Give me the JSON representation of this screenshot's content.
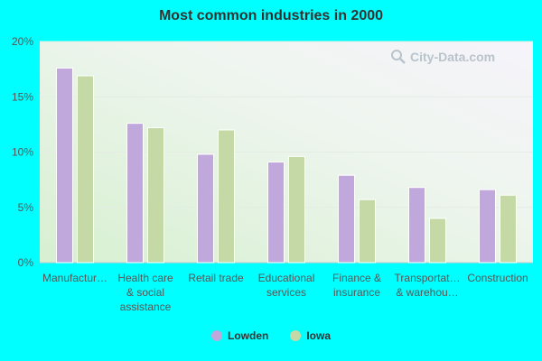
{
  "chart_data": {
    "type": "bar",
    "title": "Most common industries in 2000",
    "categories": [
      "Manufactur…",
      "Health care & social assistance",
      "Retail trade",
      "Educational services",
      "Finance & insurance",
      "Transportat… & warehou…",
      "Construction"
    ],
    "category_lines": [
      [
        "Manufactur…"
      ],
      [
        "Health care",
        "& social",
        "assistance"
      ],
      [
        "Retail trade"
      ],
      [
        "Educational",
        "services"
      ],
      [
        "Finance &",
        "insurance"
      ],
      [
        "Transportat…",
        "& warehou…"
      ],
      [
        "Construction"
      ]
    ],
    "series": [
      {
        "name": "Lowden",
        "values": [
          17.6,
          12.6,
          9.8,
          9.1,
          7.9,
          6.8,
          6.6
        ],
        "color": "#c0a8dc"
      },
      {
        "name": "Iowa",
        "values": [
          16.9,
          12.2,
          12.0,
          9.6,
          5.7,
          4.0,
          6.1
        ],
        "color": "#c4d9a6"
      }
    ],
    "ylim": [
      0,
      20
    ],
    "yticks": [
      0,
      5,
      10,
      15,
      20
    ],
    "ytick_labels": [
      "0%",
      "5%",
      "10%",
      "15%",
      "20%"
    ],
    "xlabel": "",
    "ylabel": "",
    "grid": true,
    "legend_position": "bottom-center"
  },
  "watermark": {
    "text": "City-Data.com"
  }
}
